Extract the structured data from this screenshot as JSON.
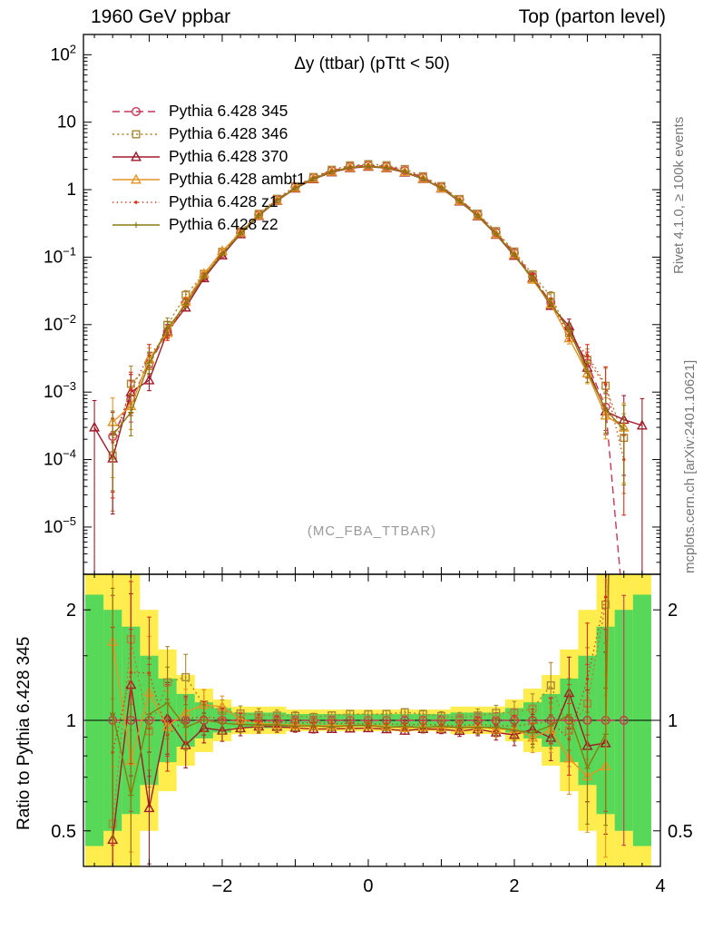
{
  "chart_data": {
    "type": "line",
    "title": "Δy (ttbar) (pTtt < 50)",
    "header_left": "1960 GeV ppbar",
    "header_right": "Top (parton level)",
    "watermark": "(MC_FBA_TTBAR)",
    "right_label_top": "Rivet 4.1.0, ≥ 100k events",
    "right_label_bottom": "mcplots.cern.ch [arXiv:2401.10621]",
    "ratio_ylabel": "Ratio to Pythia 6.428 345",
    "xlim": [
      -3.9,
      4.0
    ],
    "ylog_lim": [
      -5.7,
      2.3
    ],
    "ratio_lim": [
      0.4,
      2.5
    ],
    "x_ticks": {
      "values": [
        -2,
        0,
        2,
        4
      ],
      "labels": [
        "−2",
        "0",
        "2",
        "4"
      ]
    },
    "y_tick_exponents": [
      2,
      1,
      0,
      -1,
      -2,
      -3,
      -4,
      -5
    ],
    "ratio_ticks": {
      "values": [
        0.5,
        1,
        2
      ],
      "labels": [
        "0.5",
        "1",
        "2"
      ]
    },
    "x_values": [
      -3.75,
      -3.5,
      -3.25,
      -3.0,
      -2.75,
      -2.5,
      -2.25,
      -2.0,
      -1.75,
      -1.5,
      -1.25,
      -1.0,
      -0.75,
      -0.5,
      -0.25,
      0.0,
      0.25,
      0.5,
      0.75,
      1.0,
      1.25,
      1.5,
      1.75,
      2.0,
      2.25,
      2.5,
      2.75,
      3.0,
      3.25,
      3.5,
      3.75
    ],
    "error_rel": [
      1.0,
      0.85,
      0.55,
      0.3,
      0.18,
      0.11,
      0.07,
      0.05,
      0.035,
      0.03,
      0.025,
      0.02,
      0.018,
      0.016,
      0.015,
      0.015,
      0.015,
      0.016,
      0.018,
      0.02,
      0.025,
      0.03,
      0.035,
      0.05,
      0.07,
      0.11,
      0.18,
      0.3,
      0.55,
      0.85,
      1.0
    ],
    "bands": {
      "yellow_color": "#ffec4d",
      "green_color": "#58d858",
      "green_factor": [
        2.2,
        2.0,
        1.8,
        1.5,
        1.3,
        1.18,
        1.12,
        1.08,
        1.05,
        1.05,
        1.05,
        1.04,
        1.04,
        1.04,
        1.04,
        1.04,
        1.04,
        1.04,
        1.04,
        1.04,
        1.05,
        1.05,
        1.05,
        1.08,
        1.12,
        1.18,
        1.3,
        1.5,
        1.8,
        2.0,
        2.2
      ],
      "yellow_factor": [
        3.8,
        3.2,
        2.7,
        2.0,
        1.56,
        1.33,
        1.22,
        1.14,
        1.09,
        1.09,
        1.09,
        1.07,
        1.07,
        1.07,
        1.07,
        1.07,
        1.07,
        1.07,
        1.07,
        1.07,
        1.09,
        1.09,
        1.09,
        1.14,
        1.22,
        1.33,
        1.56,
        2.0,
        2.7,
        3.2,
        3.8
      ]
    },
    "series": [
      {
        "name": "Pythia 6.428 345",
        "color": "#cc3355",
        "dash": "dashed",
        "marker": "open-circle",
        "values": [
          null,
          0.00022,
          0.0008,
          0.0026,
          0.0078,
          0.0209,
          0.0512,
          0.113,
          0.23,
          0.424,
          0.711,
          1.09,
          1.51,
          1.91,
          2.2,
          2.3,
          2.21,
          1.92,
          1.52,
          1.1,
          0.715,
          0.427,
          0.232,
          0.115,
          0.0516,
          0.0212,
          0.008,
          0.0027,
          0.0006,
          5e-07,
          null
        ]
      },
      {
        "name": "Pythia 6.428 346",
        "color": "#aa8833",
        "dash": "dotted",
        "marker": "open-square",
        "values": [
          null,
          0.000115,
          0.00133,
          0.00243,
          0.0099,
          0.0274,
          0.0565,
          0.12,
          0.24,
          0.438,
          0.733,
          1.12,
          1.54,
          1.97,
          2.29,
          2.39,
          2.3,
          2.02,
          1.58,
          1.13,
          0.726,
          0.44,
          0.243,
          0.121,
          0.0555,
          0.0264,
          0.0075,
          0.003,
          0.00124,
          0.00021,
          null
        ]
      },
      {
        "name": "Pythia 6.428 370",
        "color": "#a01a2a",
        "dash": "solid",
        "marker": "open-triangle",
        "values": [
          0.0003,
          0.000104,
          0.001,
          0.0015,
          0.0079,
          0.0179,
          0.0488,
          0.106,
          0.219,
          0.408,
          0.683,
          1.04,
          1.43,
          1.81,
          2.09,
          2.19,
          2.09,
          1.8,
          1.44,
          1.04,
          0.669,
          0.404,
          0.215,
          0.105,
          0.0488,
          0.019,
          0.0095,
          0.0023,
          0.00052,
          0.00039,
          0.00032
        ]
      },
      {
        "name": "Pythia 6.428 ambt1",
        "color": "#e69422",
        "dash": "solid",
        "marker": "open-triangle",
        "values": [
          null,
          0.00036,
          0.00062,
          0.0031,
          0.0075,
          0.022,
          0.0565,
          0.123,
          0.231,
          0.417,
          0.691,
          1.06,
          1.46,
          1.85,
          2.13,
          2.23,
          2.13,
          1.83,
          1.46,
          1.05,
          0.683,
          0.412,
          0.219,
          0.109,
          0.0463,
          0.02,
          0.0063,
          0.0019,
          0.00045,
          0.0003,
          null
        ]
      },
      {
        "name": "Pythia 6.428 z1",
        "color": "#d93118",
        "dash": "fine-dotted",
        "marker": "dot",
        "values": [
          null,
          0.00018,
          0.00108,
          0.0035,
          0.0071,
          0.0211,
          0.0524,
          0.114,
          0.229,
          0.421,
          0.705,
          1.07,
          1.49,
          1.87,
          2.16,
          2.25,
          2.16,
          1.87,
          1.48,
          1.07,
          0.691,
          0.417,
          0.224,
          0.111,
          0.0504,
          0.0211,
          0.0071,
          0.0035,
          0.0013,
          0.0001,
          null
        ]
      },
      {
        "name": "Pythia 6.428 z2",
        "color": "#8a7a10",
        "dash": "solid",
        "marker": "plus",
        "values": [
          null,
          0.00023,
          0.0005,
          0.0027,
          0.0087,
          0.02,
          0.0514,
          0.111,
          0.224,
          0.412,
          0.691,
          1.05,
          1.46,
          1.83,
          2.13,
          2.23,
          2.11,
          1.85,
          1.45,
          1.06,
          0.683,
          0.408,
          0.222,
          0.108,
          0.0478,
          0.0205,
          0.0083,
          0.002,
          0.00055,
          0.00028,
          null
        ]
      }
    ]
  }
}
